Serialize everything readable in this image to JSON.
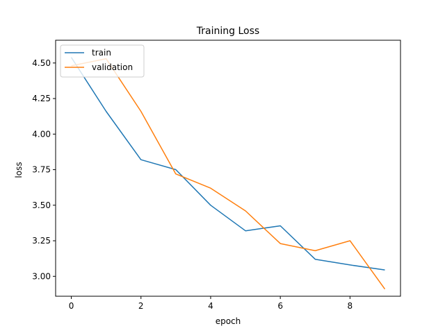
{
  "chart_data": {
    "type": "line",
    "title": "Training Loss",
    "xlabel": "epoch",
    "ylabel": "loss",
    "xlim": [
      -0.45,
      9.45
    ],
    "ylim": [
      2.86,
      4.66
    ],
    "xticks": [
      0,
      2,
      4,
      6,
      8
    ],
    "yticks": [
      3.0,
      3.25,
      3.5,
      3.75,
      4.0,
      4.25,
      4.5
    ],
    "xtick_labels": [
      "0",
      "2",
      "4",
      "6",
      "8"
    ],
    "ytick_labels": [
      "3.00",
      "3.25",
      "3.50",
      "3.75",
      "4.00",
      "4.25",
      "4.50"
    ],
    "grid": false,
    "legend_position": "upper left",
    "x": [
      0,
      1,
      2,
      3,
      4,
      5,
      6,
      7,
      8,
      9
    ],
    "series": [
      {
        "name": "train",
        "color": "#1f77b4",
        "values": [
          4.54,
          4.16,
          3.82,
          3.75,
          3.5,
          3.32,
          3.355,
          3.12,
          3.08,
          3.045
        ]
      },
      {
        "name": "validation",
        "color": "#ff7f0e",
        "values": [
          4.48,
          4.53,
          4.16,
          3.72,
          3.62,
          3.46,
          3.23,
          3.18,
          3.25,
          2.91
        ]
      }
    ]
  }
}
